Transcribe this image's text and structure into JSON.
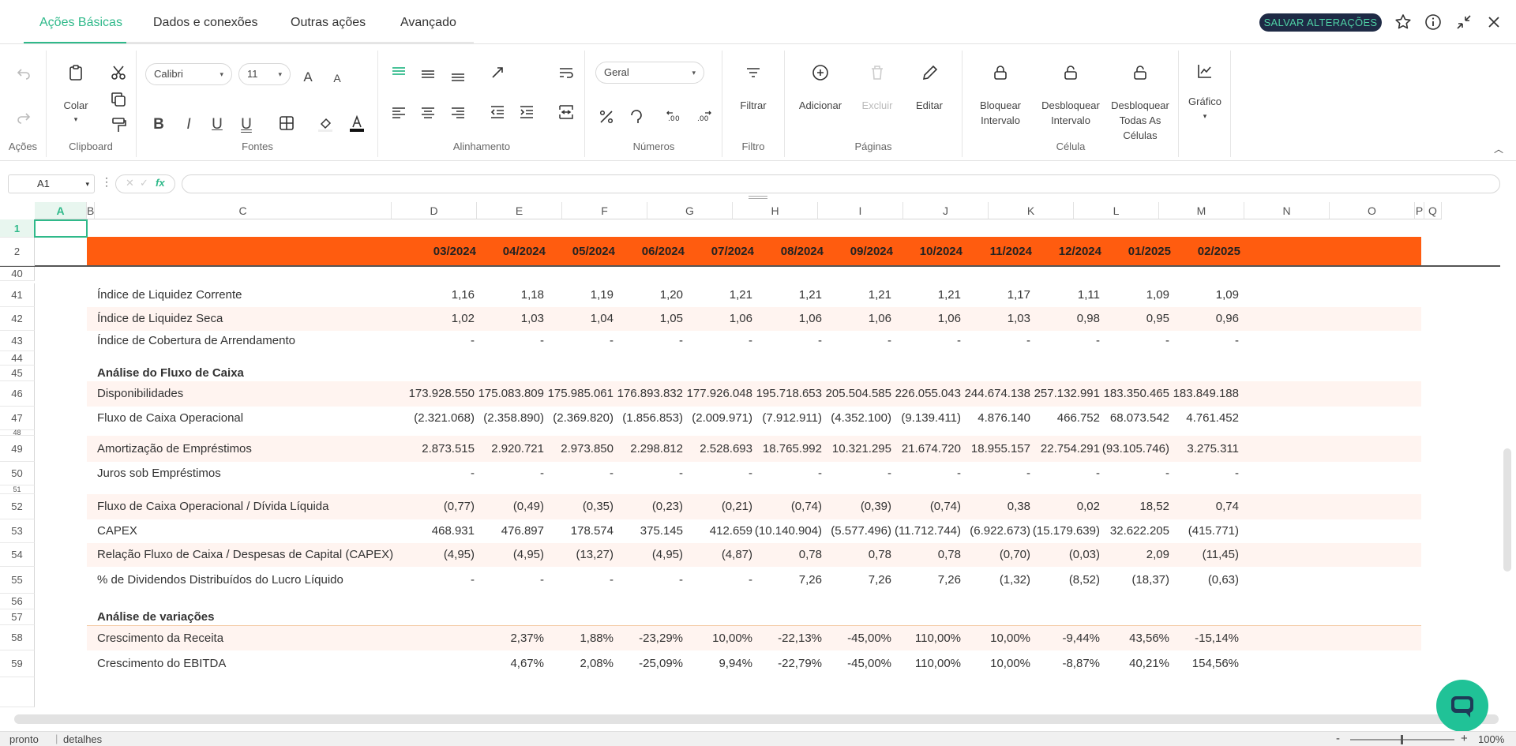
{
  "tabs": [
    "Ações Básicas",
    "Dados e conexões",
    "Outras ações",
    "Avançado"
  ],
  "save_button": "SALVAR ALTERAÇÕES",
  "ribbon": {
    "groups": {
      "acoes": "Ações",
      "clipboard": "Clipboard",
      "fontes": "Fontes",
      "alinhamento": "Alinhamento",
      "numeros": "Números",
      "filtro": "Filtro",
      "paginas": "Páginas",
      "celula": "Célula"
    },
    "colar": "Colar",
    "font_name": "Calibri",
    "font_size": "11",
    "number_format": "Geral",
    "filtrar": "Filtrar",
    "adicionar": "Adicionar",
    "excluir": "Excluir",
    "editar": "Editar",
    "bloquear": "Bloquear Intervalo",
    "desbloquear": "Desbloquear Intervalo",
    "desbloquear_todas": "Desbloquear Todas As Células",
    "grafico": "Gráfico"
  },
  "formula": {
    "cell_ref": "A1",
    "fx": "fx",
    "value": ""
  },
  "columns": [
    "A",
    "B",
    "C",
    "D",
    "E",
    "F",
    "G",
    "H",
    "I",
    "J",
    "K",
    "L",
    "M",
    "N",
    "O",
    "P",
    "Q"
  ],
  "header_periods": [
    "03/2024",
    "04/2024",
    "05/2024",
    "06/2024",
    "07/2024",
    "08/2024",
    "09/2024",
    "10/2024",
    "11/2024",
    "12/2024",
    "01/2025",
    "02/2025"
  ],
  "rows": [
    {
      "n": "41",
      "label": "Índice de Liquidez Corrente",
      "values": [
        "1,16",
        "1,18",
        "1,19",
        "1,20",
        "1,21",
        "1,21",
        "1,21",
        "1,21",
        "1,17",
        "1,11",
        "1,09",
        "1,09"
      ]
    },
    {
      "n": "42",
      "label": "Índice de Liquidez Seca",
      "values": [
        "1,02",
        "1,03",
        "1,04",
        "1,05",
        "1,06",
        "1,06",
        "1,06",
        "1,06",
        "1,03",
        "0,98",
        "0,95",
        "0,96"
      ]
    },
    {
      "n": "43",
      "label": "Índice de Cobertura de Arrendamento",
      "values": [
        "-",
        "-",
        "-",
        "-",
        "-",
        "-",
        "-",
        "-",
        "-",
        "-",
        "-",
        "-"
      ]
    },
    {
      "n": "45",
      "label": "Análise do Fluxo de Caixa",
      "values": []
    },
    {
      "n": "46",
      "label": "Disponibilidades",
      "values": [
        "173.928.550",
        "175.083.809",
        "175.985.061",
        "176.893.832",
        "177.926.048",
        "195.718.653",
        "205.504.585",
        "226.055.043",
        "244.674.138",
        "257.132.991",
        "183.350.465",
        "183.849.188"
      ]
    },
    {
      "n": "47",
      "label": "Fluxo de Caixa Operacional",
      "values": [
        "(2.321.068)",
        "(2.358.890)",
        "(2.369.820)",
        "(1.856.853)",
        "(2.009.971)",
        "(7.912.911)",
        "(4.352.100)",
        "(9.139.411)",
        "4.876.140",
        "466.752",
        "68.073.542",
        "4.761.452"
      ]
    },
    {
      "n": "49",
      "label": "Amortização de Empréstimos",
      "values": [
        "2.873.515",
        "2.920.721",
        "2.973.850",
        "2.298.812",
        "2.528.693",
        "18.765.992",
        "10.321.295",
        "21.674.720",
        "18.955.157",
        "22.754.291",
        "(93.105.746)",
        "3.275.311"
      ]
    },
    {
      "n": "50",
      "label": "Juros sob Empréstimos",
      "values": [
        "-",
        "-",
        "-",
        "-",
        "-",
        "-",
        "-",
        "-",
        "-",
        "-",
        "-",
        "-"
      ]
    },
    {
      "n": "52",
      "label": "Fluxo de Caixa Operacional / Dívida Líquida",
      "values": [
        "(0,77)",
        "(0,49)",
        "(0,35)",
        "(0,23)",
        "(0,21)",
        "(0,74)",
        "(0,39)",
        "(0,74)",
        "0,38",
        "0,02",
        "18,52",
        "0,74"
      ]
    },
    {
      "n": "53",
      "label": "CAPEX",
      "values": [
        "468.931",
        "476.897",
        "178.574",
        "375.145",
        "412.659",
        "(10.140.904)",
        "(5.577.496)",
        "(11.712.744)",
        "(6.922.673)",
        "(15.179.639)",
        "32.622.205",
        "(415.771)"
      ]
    },
    {
      "n": "54",
      "label": "Relação Fluxo de Caixa / Despesas de Capital (CAPEX)",
      "values": [
        "(4,95)",
        "(4,95)",
        "(13,27)",
        "(4,95)",
        "(4,87)",
        "0,78",
        "0,78",
        "0,78",
        "(0,70)",
        "(0,03)",
        "2,09",
        "(11,45)"
      ]
    },
    {
      "n": "55",
      "label": "% de Dividendos Distribuídos do Lucro Líquido",
      "values": [
        "-",
        "-",
        "-",
        "-",
        "-",
        "7,26",
        "7,26",
        "7,26",
        "(1,32)",
        "(8,52)",
        "(18,37)",
        "(0,63)"
      ]
    },
    {
      "n": "57",
      "label": "Análise de variações",
      "values": []
    },
    {
      "n": "58",
      "label": "Crescimento da Receita",
      "values": [
        "",
        "2,37%",
        "1,88%",
        "-23,29%",
        "10,00%",
        "-22,13%",
        "-45,00%",
        "110,00%",
        "10,00%",
        "-9,44%",
        "43,56%",
        "-15,14%"
      ]
    },
    {
      "n": "59",
      "label": "Crescimento do EBITDA",
      "values": [
        "",
        "4,67%",
        "2,08%",
        "-25,09%",
        "9,94%",
        "-22,79%",
        "-45,00%",
        "110,00%",
        "10,00%",
        "-8,87%",
        "40,21%",
        "154,56%"
      ]
    }
  ],
  "status": {
    "state": "pronto",
    "details": "detalhes",
    "zoom": "100%"
  }
}
